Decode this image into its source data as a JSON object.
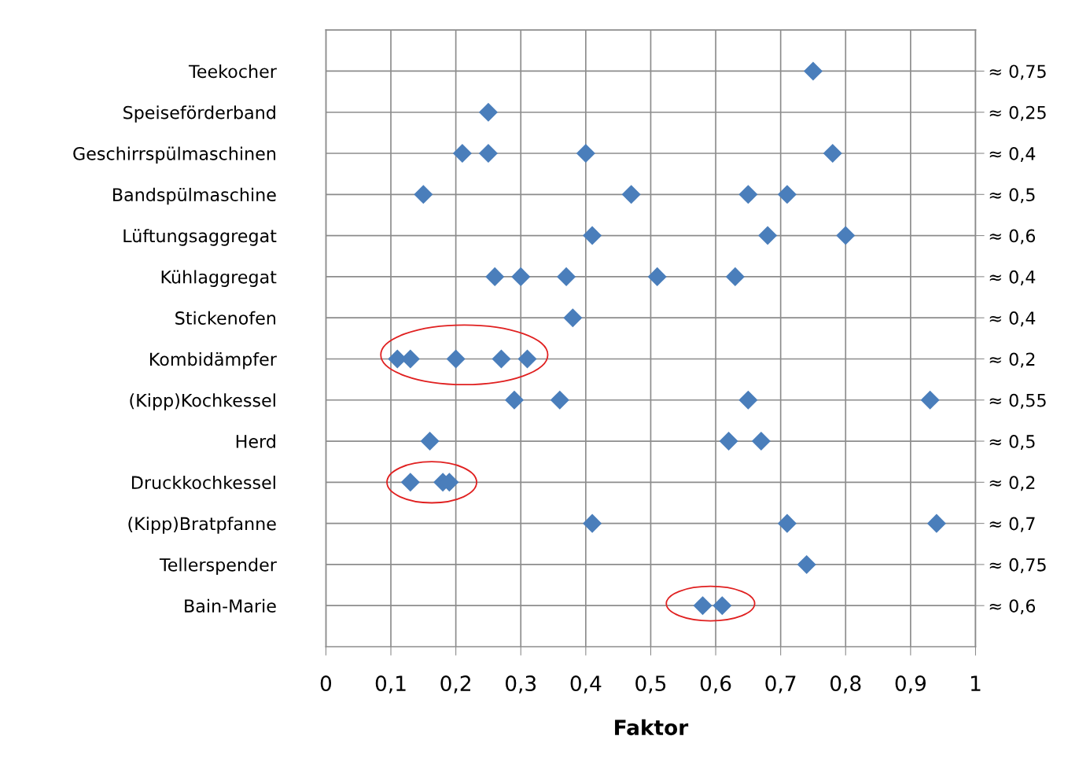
{
  "chart_data": {
    "type": "scatter",
    "orientation": "horizontal",
    "xlabel": "Faktor",
    "categories": [
      "Teekocher",
      "Speiseförderband",
      "Geschirrspülmaschinen",
      "Bandspülmaschine",
      "Lüftungsaggregat",
      "Kühlaggregat",
      "Stickenofen",
      "Kombidämpfer",
      "(Kipp)Kochkessel",
      "Herd",
      "Druckkochkessel",
      "(Kipp)Bratpfanne",
      "Tellerspender",
      "Bain-Marie"
    ],
    "y2_categories": [
      "≈ 0,75",
      "≈ 0,25",
      "≈ 0,4",
      "≈ 0,5",
      "≈ 0,6",
      "≈ 0,4",
      "≈ 0,4",
      "≈ 0,2",
      "≈ 0,55",
      "≈ 0,5",
      "≈ 0,2",
      "≈ 0,7",
      "≈ 0,75",
      "≈ 0,6"
    ],
    "series": [
      {
        "color": "#4a7ebb",
        "values": [
          0.75,
          0.25,
          0.21,
          0.15,
          0.41,
          0.26,
          0.38,
          0.11,
          0.29,
          0.16,
          0.13,
          0.41,
          0.74,
          0.58
        ]
      },
      {
        "color": "#4a7ebb",
        "values": [
          null,
          null,
          0.25,
          0.47,
          0.68,
          0.3,
          null,
          0.13,
          0.36,
          0.62,
          0.18,
          0.71,
          null,
          0.61
        ]
      },
      {
        "color": "#4a7ebb",
        "values": [
          null,
          null,
          0.4,
          0.65,
          0.8,
          0.37,
          null,
          0.2,
          0.65,
          0.67,
          0.19,
          0.94,
          null,
          null
        ]
      },
      {
        "color": "#4a7ebb",
        "values": [
          null,
          null,
          0.78,
          0.71,
          null,
          0.51,
          null,
          0.27,
          0.93,
          null,
          null,
          null,
          null,
          null
        ]
      },
      {
        "color": "#4a7ebb",
        "values": [
          null,
          null,
          null,
          null,
          null,
          0.63,
          null,
          0.31,
          null,
          null,
          null,
          null,
          null,
          null
        ]
      }
    ],
    "xlim": [
      0,
      1
    ],
    "xticks": [
      0,
      {
        "value": 0.1,
        "label": "0,1"
      },
      {
        "value": 0.2,
        "label": "0,2"
      },
      {
        "value": 0.3,
        "label": "0,3"
      },
      {
        "value": 0.4,
        "label": "0,4"
      },
      {
        "value": 0.5,
        "label": "0,5"
      },
      {
        "value": 0.6,
        "label": "0,6"
      },
      {
        "value": 0.7,
        "label": "0,7"
      },
      {
        "value": 0.8,
        "label": "0,8"
      },
      {
        "value": 0.9,
        "label": "0,9"
      },
      1
    ],
    "grid": true,
    "marker": "diamond"
  }
}
